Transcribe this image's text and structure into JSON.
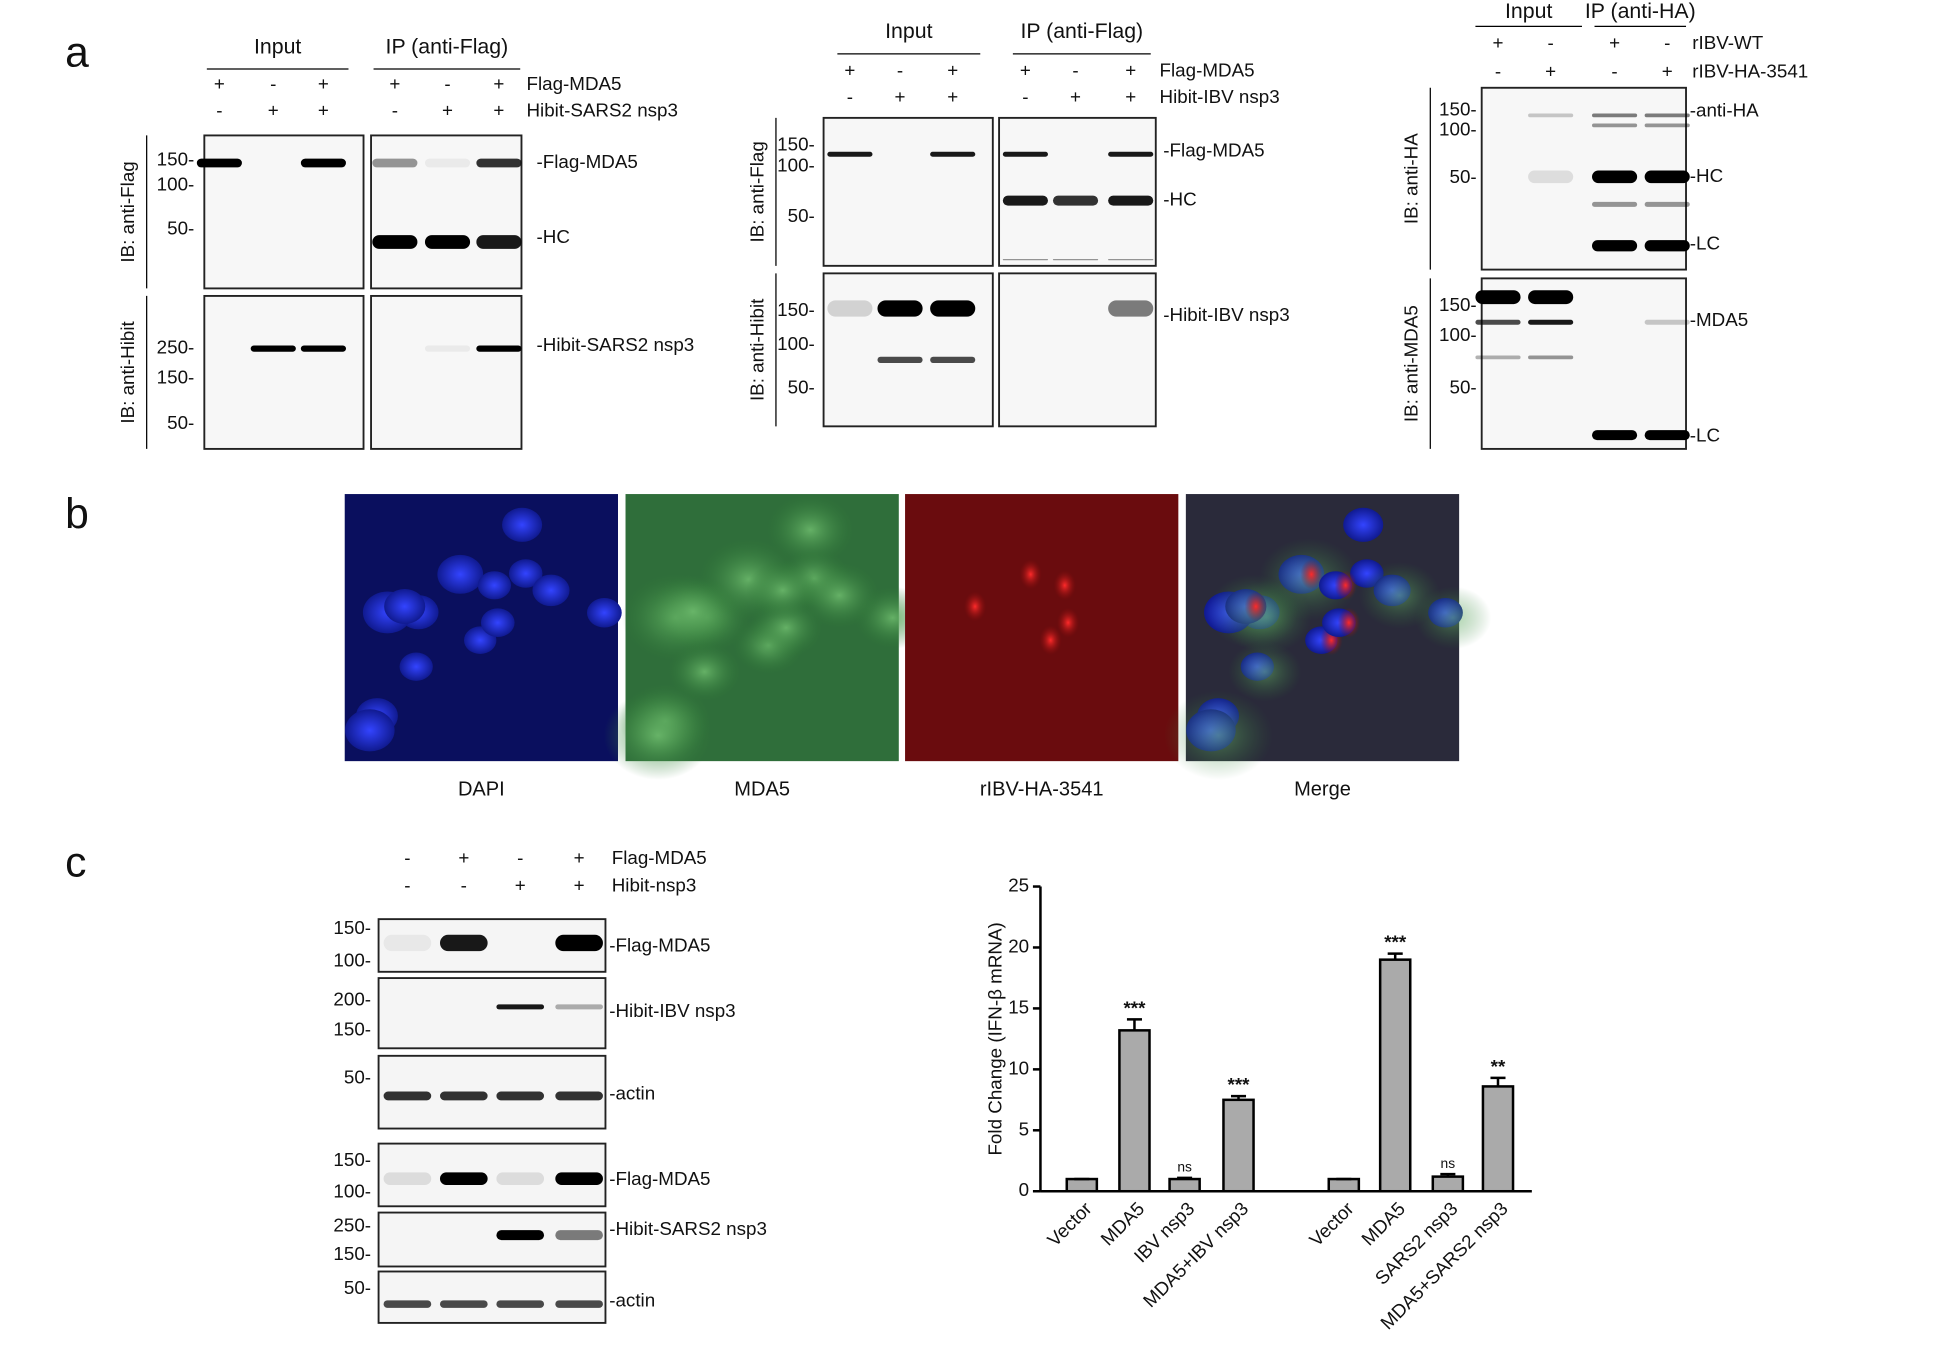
{
  "panel_labels": [
    "a",
    "b",
    "c"
  ],
  "panel_a": [
    {
      "groups": [
        "Input",
        "IP (anti-Flag)"
      ],
      "rows": [
        {
          "label": "Flag-MDA5",
          "signs": [
            "+",
            "-",
            "+",
            "+",
            "-",
            "+"
          ]
        },
        {
          "label": "Hibit-SARS2 nsp3",
          "signs": [
            "-",
            "+",
            "+",
            "-",
            "+",
            "+"
          ]
        }
      ],
      "blots": [
        {
          "ylabel": "IB: anti-Flag",
          "markers": [
            "150-",
            "100-",
            "50-"
          ],
          "bands": [
            "-Flag-MDA5",
            "-HC"
          ]
        },
        {
          "ylabel": "IB: anti-Hibit",
          "markers": [
            "250-",
            "150-",
            "50-"
          ],
          "bands": [
            "-Hibit-SARS2 nsp3"
          ]
        }
      ]
    },
    {
      "groups": [
        "Input",
        "IP (anti-Flag)"
      ],
      "rows": [
        {
          "label": "Flag-MDA5",
          "signs": [
            "+",
            "-",
            "+",
            "+",
            "-",
            "+"
          ]
        },
        {
          "label": "Hibit-IBV nsp3",
          "signs": [
            "-",
            "+",
            "+",
            "-",
            "+",
            "+"
          ]
        }
      ],
      "blots": [
        {
          "ylabel": "IB: anti-Flag",
          "markers": [
            "150-",
            "100-",
            "50-"
          ],
          "bands": [
            "-Flag-MDA5",
            "-HC"
          ]
        },
        {
          "ylabel": "IB: anti-Hibit",
          "markers": [
            "150-",
            "100-",
            "50-"
          ],
          "bands": [
            "-Hibit-IBV nsp3"
          ]
        }
      ]
    },
    {
      "groups": [
        "Input",
        "IP (anti-HA)"
      ],
      "rows": [
        {
          "label": "rIBV-WT",
          "signs": [
            "+",
            "-",
            "+",
            "-"
          ]
        },
        {
          "label": "rIBV-HA-3541",
          "signs": [
            "-",
            "+",
            "-",
            "+"
          ]
        }
      ],
      "blots": [
        {
          "ylabel": "IB: anti-HA",
          "markers": [
            "150-",
            "100-",
            "50-"
          ],
          "bands": [
            "-anti-HA",
            "-HC",
            "-LC"
          ]
        },
        {
          "ylabel": "IB: anti-MDA5",
          "markers": [
            "150-",
            "100-",
            "50-"
          ],
          "bands": [
            "-MDA5",
            "-LC"
          ]
        }
      ]
    }
  ],
  "panel_b": {
    "captions": [
      "DAPI",
      "MDA5",
      "rIBV-HA-3541",
      "Merge"
    ]
  },
  "panel_c_blot": {
    "rows": [
      {
        "label": "Flag-MDA5",
        "signs": [
          "-",
          "+",
          "-",
          "+"
        ]
      },
      {
        "label": "Hibit-nsp3",
        "signs": [
          "-",
          "-",
          "+",
          "+"
        ]
      }
    ],
    "strips": [
      {
        "markers": [
          "150-",
          "100-"
        ],
        "band": "-Flag-MDA5"
      },
      {
        "markers": [
          "200-",
          "150-"
        ],
        "band": "-Hibit-IBV nsp3"
      },
      {
        "markers": [
          "50-"
        ],
        "band": "-actin"
      },
      {
        "markers": [
          "150-",
          "100-"
        ],
        "band": "-Flag-MDA5"
      },
      {
        "markers": [
          "250-",
          "150-"
        ],
        "band": "-Hibit-SARS2 nsp3"
      },
      {
        "markers": [
          "50-"
        ],
        "band": "-actin"
      }
    ]
  },
  "chart_data": {
    "type": "bar",
    "ylabel": "Fold Change  (IFN-β mRNA)",
    "categories": [
      "Vector",
      "MDA5",
      "IBV nsp3",
      "MDA5+IBV nsp3",
      "Vector",
      "MDA5",
      "SARS2 nsp3",
      "MDA5+SARS2 nsp3"
    ],
    "values": [
      1,
      13.2,
      1,
      7.5,
      1,
      19,
      1.2,
      8.6
    ],
    "errors": [
      0,
      0.9,
      0.1,
      0.3,
      0,
      0.5,
      0.2,
      0.7
    ],
    "significance": [
      null,
      "***",
      "ns",
      "***",
      null,
      "***",
      "ns",
      "**"
    ],
    "color": "#aaaaaa",
    "ylim": [
      0,
      25
    ],
    "yticks": [
      0,
      5,
      10,
      15,
      20,
      25
    ]
  }
}
